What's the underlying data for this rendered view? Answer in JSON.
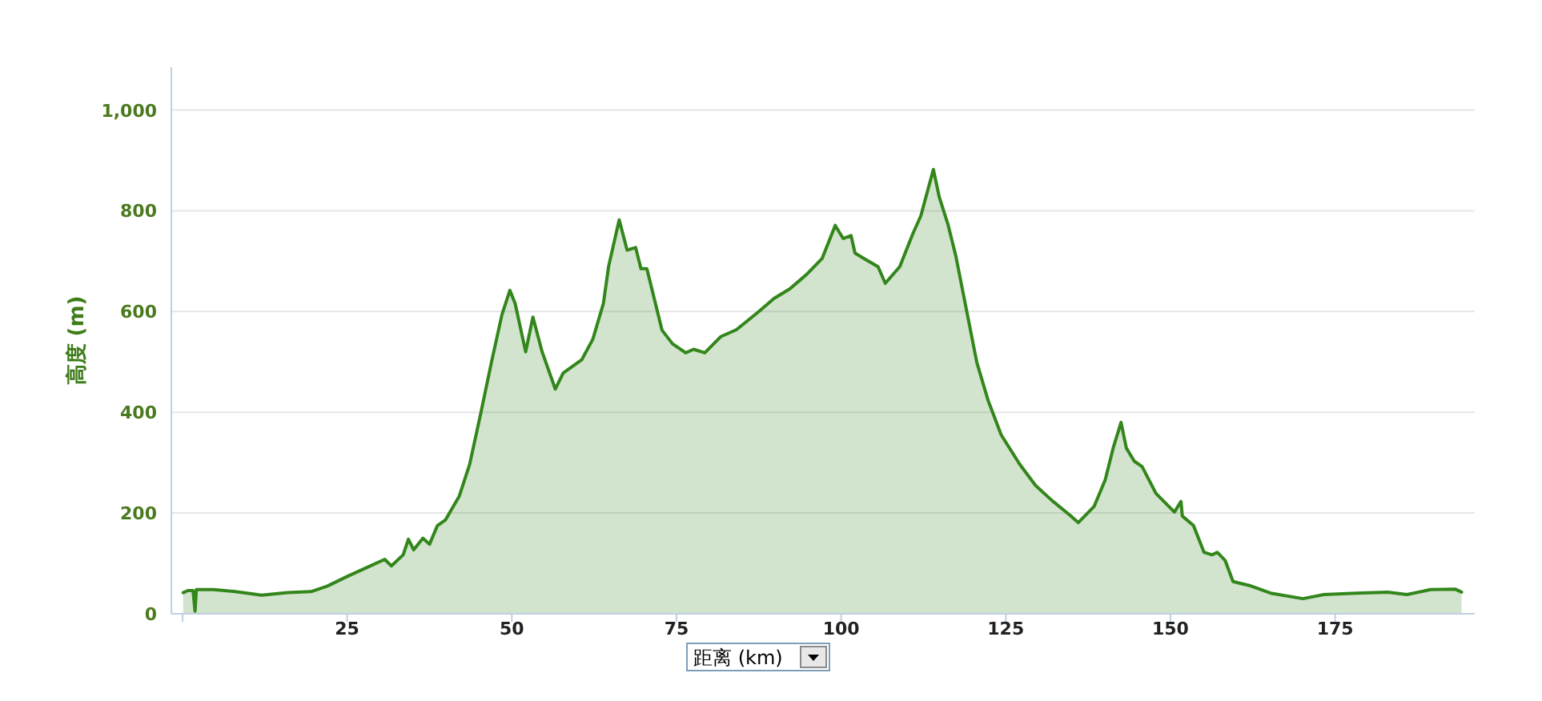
{
  "chart_data": {
    "type": "area",
    "xlabel": "距离 (km)",
    "ylabel": "高度 (m)",
    "x": [
      0.1,
      0.8,
      1.6,
      1.9,
      2.1,
      4.7,
      8,
      12,
      16,
      19.5,
      22,
      25,
      28,
      30.7,
      31.7,
      33.5,
      34.3,
      35.1,
      36.5,
      37.5,
      38.7,
      39.9,
      42,
      43.6,
      45.2,
      46.9,
      48.5,
      49.7,
      50.5,
      52.1,
      53.2,
      54.6,
      56.6,
      57.8,
      60.6,
      62.3,
      63.9,
      64.7,
      66.3,
      67.5,
      68.8,
      69.6,
      70.5,
      71.2,
      72.8,
      74.4,
      76.4,
      77.6,
      79.3,
      81.7,
      84.1,
      87.4,
      89.8,
      92.2,
      94.7,
      97.1,
      99.1,
      100.3,
      101.5,
      102.1,
      103.5,
      105.6,
      106.7,
      108.9,
      110.9,
      112.1,
      114,
      114.9,
      116.2,
      117.4,
      119,
      120.6,
      122.3,
      124.3,
      127.1,
      129.5,
      132,
      134.8,
      136,
      138.4,
      140.1,
      141.3,
      142.5,
      143.3,
      144.5,
      145.7,
      147.8,
      150.6,
      151.6,
      151.8,
      153.5,
      155.1,
      156.3,
      157.1,
      158.3,
      159.5,
      162,
      165.2,
      170.1,
      173.3,
      178.2,
      183,
      185.9,
      189.5,
      193.2,
      194.2
    ],
    "series": [
      {
        "color": "#33861b",
        "values": [
          42,
          46,
          46,
          5,
          48,
          48,
          44,
          37,
          42,
          44,
          55,
          74,
          92,
          108,
          95,
          117,
          148,
          127,
          150,
          138,
          175,
          186,
          233,
          297,
          393,
          499,
          594,
          642,
          616,
          520,
          589,
          520,
          446,
          478,
          504,
          545,
          616,
          690,
          782,
          722,
          727,
          685,
          685,
          648,
          563,
          536,
          518,
          525,
          518,
          550,
          564,
          599,
          626,
          645,
          673,
          705,
          771,
          745,
          751,
          716,
          705,
          689,
          656,
          689,
          755,
          790,
          882,
          827,
          774,
          711,
          605,
          499,
          424,
          355,
          297,
          255,
          225,
          195,
          181,
          213,
          266,
          329,
          380,
          329,
          303,
          292,
          239,
          202,
          223,
          194,
          175,
          122,
          117,
          122,
          106,
          64,
          56,
          41,
          30,
          38,
          41,
          43,
          38,
          48,
          49,
          43
        ]
      }
    ],
    "xlim": [
      -1.7,
      196.2
    ],
    "ylim": [
      0,
      1085
    ],
    "xticks": [
      {
        "value": 0,
        "label": null
      },
      25,
      50,
      75,
      100,
      125,
      150,
      175
    ],
    "yticks": [
      0,
      200,
      400,
      600,
      800,
      {
        "value": 1000,
        "label": "1,000"
      }
    ],
    "grid": "y"
  }
}
